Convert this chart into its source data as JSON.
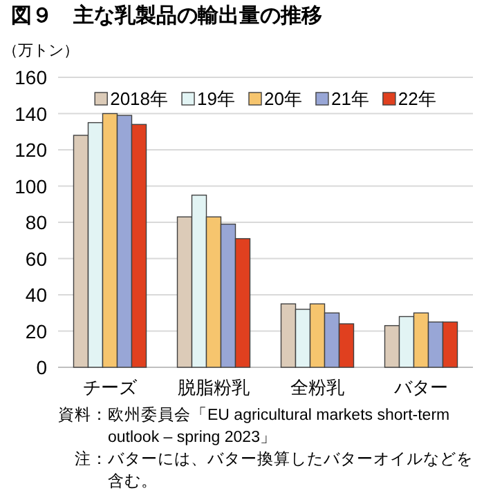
{
  "chart_data": {
    "type": "bar",
    "title": "図９　主な乳製品の輸出量の推移",
    "ylabel": "（万トン）",
    "categories": [
      "チーズ",
      "脱脂粉乳",
      "全粉乳",
      "バター"
    ],
    "series": [
      {
        "name": "2018年",
        "color": "#dccbb8",
        "values": [
          128,
          83,
          35,
          23
        ]
      },
      {
        "name": "19年",
        "color": "#e2f4f4",
        "values": [
          135,
          95,
          32,
          28
        ]
      },
      {
        "name": "20年",
        "color": "#f6c56e",
        "values": [
          140,
          83,
          35,
          30
        ]
      },
      {
        "name": "21年",
        "color": "#98a6d6",
        "values": [
          139,
          79,
          30,
          25
        ]
      },
      {
        "name": "22年",
        "color": "#e0401f",
        "values": [
          134,
          71,
          24,
          25
        ]
      }
    ],
    "ylim": [
      0,
      160
    ],
    "yticks": [
      0,
      20,
      40,
      60,
      80,
      100,
      120,
      140,
      160
    ],
    "grid": "y",
    "legend": "top",
    "annotations": [
      "資料：欧州委員会「EU agricultural markets short-term outlook – spring 2023」",
      "注：バターには、バター換算したバターオイルなどを含む。"
    ]
  }
}
